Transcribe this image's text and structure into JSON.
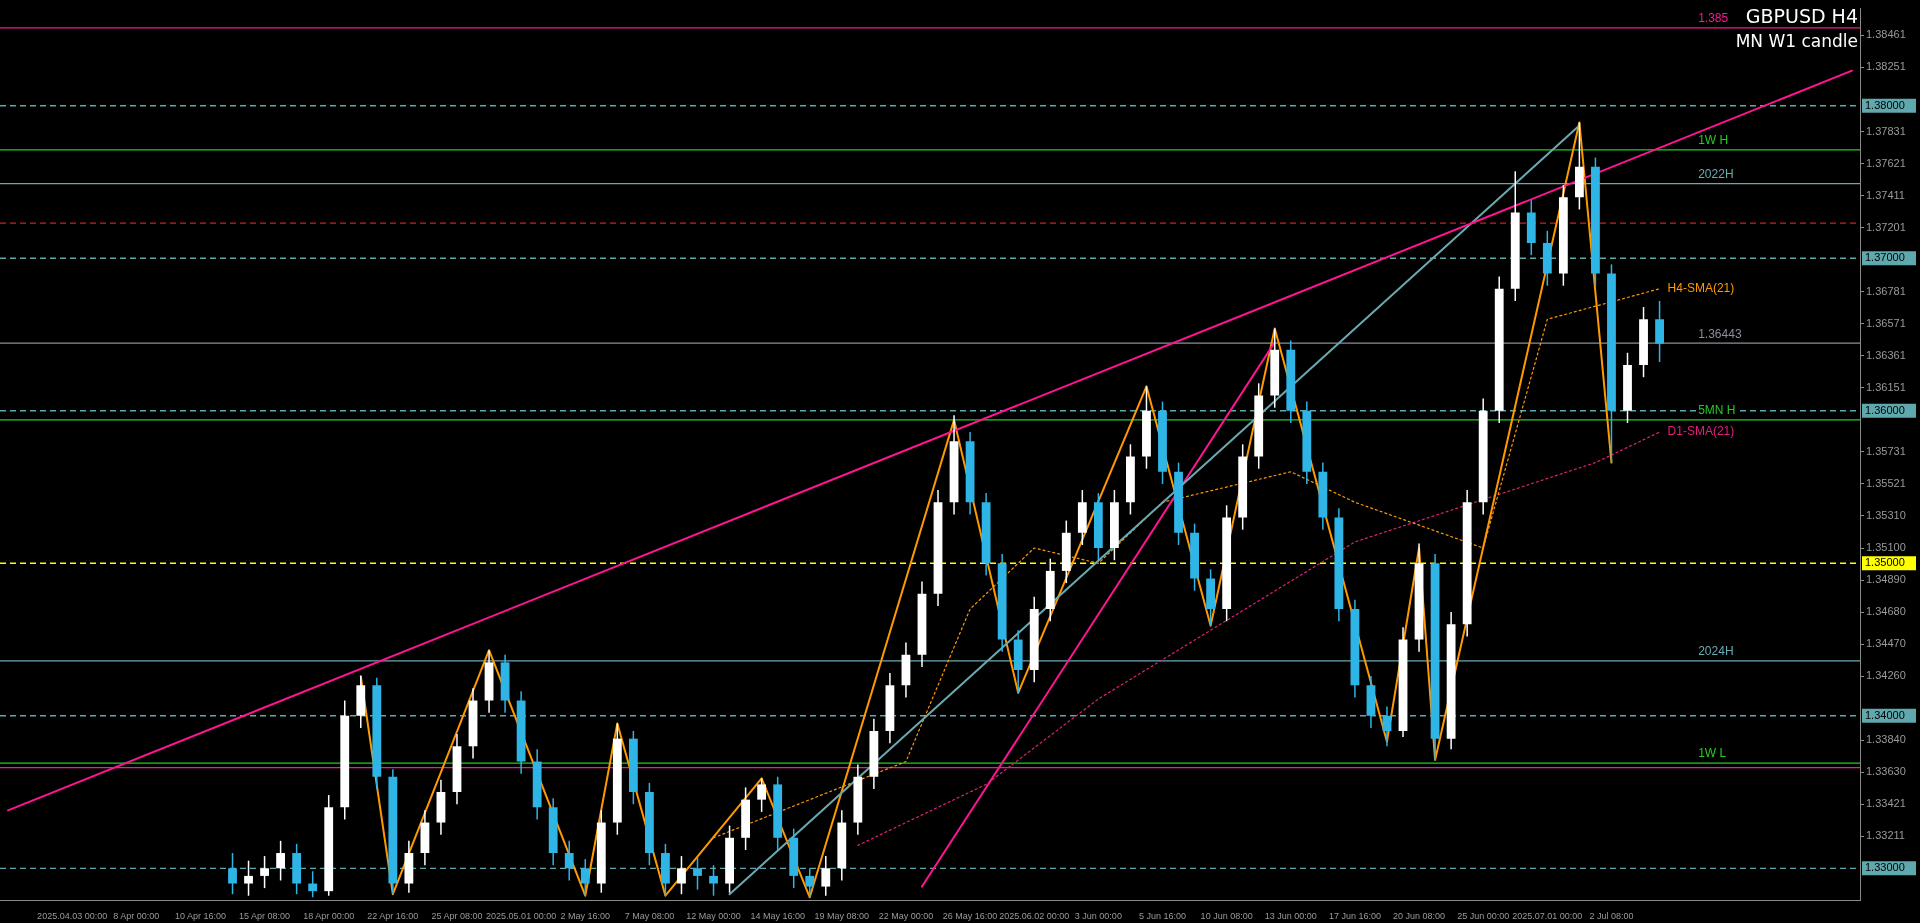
{
  "chart_data": {
    "type": "candlestick",
    "title": "GBPUSD H4",
    "subtitle": "MN W1 candle",
    "categories": [
      null,
      null,
      null,
      null,
      "2025.04.03 00:00",
      null,
      null,
      null,
      "8 Apr 00:00",
      null,
      null,
      null,
      "10 Apr 16:00",
      null,
      null,
      null,
      "15 Apr 08:00",
      null,
      null,
      null,
      "18 Apr 00:00",
      null,
      null,
      null,
      "22 Apr 16:00",
      null,
      null,
      null,
      "25 Apr 08:00",
      null,
      null,
      null,
      "2025.05.01 00:00",
      null,
      null,
      null,
      "2 May 16:00",
      null,
      null,
      null,
      "7 May 08:00",
      null,
      null,
      null,
      "12 May 00:00",
      null,
      null,
      null,
      "14 May 16:00",
      null,
      null,
      null,
      "19 May 08:00",
      null,
      null,
      null,
      "22 May 00:00",
      null,
      null,
      null,
      "26 May 16:00",
      null,
      null,
      null,
      "2025.06.02 00:00",
      null,
      null,
      null,
      "3 Jun 00:00",
      null,
      null,
      null,
      "5 Jun 16:00",
      null,
      null,
      null,
      "10 Jun 08:00",
      null,
      null,
      null,
      "13 Jun 00:00",
      null,
      null,
      null,
      "17 Jun 16:00",
      null,
      null,
      null,
      "20 Jun 08:00",
      null,
      null,
      null,
      "25 Jun 00:00",
      null,
      null,
      null,
      "2025.07.01 00:00",
      null,
      null,
      null,
      "2 Jul 08:00",
      null,
      null,
      null,
      null,
      null,
      null,
      null,
      null,
      null,
      null,
      null,
      null,
      null,
      null,
      null
    ],
    "ohlc": [
      null,
      null,
      null,
      null,
      null,
      null,
      null,
      null,
      null,
      null,
      null,
      null,
      null,
      null,
      [
        1.33,
        1.331,
        1.3283,
        1.329
      ],
      [
        1.329,
        1.3305,
        1.3282,
        1.3295
      ],
      [
        1.3295,
        1.3308,
        1.3287,
        1.33
      ],
      [
        1.33,
        1.3318,
        1.3292,
        1.331
      ],
      [
        1.331,
        1.3316,
        1.3283,
        1.329
      ],
      [
        1.329,
        1.3298,
        1.3281,
        1.3285
      ],
      [
        1.3285,
        1.3348,
        1.3282,
        1.334
      ],
      [
        1.334,
        1.341,
        1.3332,
        1.34
      ],
      [
        1.34,
        1.3426,
        1.3392,
        1.342
      ],
      [
        1.342,
        1.3425,
        1.3352,
        1.336
      ],
      [
        1.336,
        1.3365,
        1.3283,
        1.329
      ],
      [
        1.329,
        1.3318,
        1.3284,
        1.331
      ],
      [
        1.331,
        1.3338,
        1.3302,
        1.333
      ],
      [
        1.333,
        1.3358,
        1.3322,
        1.335
      ],
      [
        1.335,
        1.3388,
        1.3342,
        1.338
      ],
      [
        1.338,
        1.3418,
        1.3372,
        1.341
      ],
      [
        1.341,
        1.3443,
        1.3402,
        1.3435
      ],
      [
        1.3435,
        1.344,
        1.3402,
        1.341
      ],
      [
        1.341,
        1.3416,
        1.3362,
        1.337
      ],
      [
        1.337,
        1.3378,
        1.3332,
        1.334
      ],
      [
        1.334,
        1.3346,
        1.3302,
        1.331
      ],
      [
        1.331,
        1.3318,
        1.3292,
        1.33
      ],
      [
        1.33,
        1.3306,
        1.3282,
        1.329
      ],
      [
        1.329,
        1.3338,
        1.3284,
        1.333
      ],
      [
        1.333,
        1.3395,
        1.3322,
        1.3385
      ],
      [
        1.3385,
        1.339,
        1.3342,
        1.335
      ],
      [
        1.335,
        1.3356,
        1.3302,
        1.331
      ],
      [
        1.331,
        1.3316,
        1.3282,
        1.329
      ],
      [
        1.329,
        1.3308,
        1.3283,
        1.33
      ],
      [
        1.33,
        1.3307,
        1.3286,
        1.3295
      ],
      [
        1.3295,
        1.3302,
        1.3282,
        1.329
      ],
      [
        1.329,
        1.3328,
        1.3284,
        1.332
      ],
      [
        1.332,
        1.3353,
        1.3312,
        1.3345
      ],
      [
        1.3345,
        1.3359,
        1.3337,
        1.3355
      ],
      [
        1.3355,
        1.336,
        1.3312,
        1.332
      ],
      [
        1.332,
        1.3326,
        1.3287,
        1.3295
      ],
      [
        1.3295,
        1.33,
        1.3281,
        1.3288
      ],
      [
        1.3288,
        1.3308,
        1.3282,
        1.33
      ],
      [
        1.33,
        1.3338,
        1.3292,
        1.333
      ],
      [
        1.333,
        1.3368,
        1.3322,
        1.336
      ],
      [
        1.336,
        1.3398,
        1.3352,
        1.339
      ],
      [
        1.339,
        1.3428,
        1.3382,
        1.342
      ],
      [
        1.342,
        1.3448,
        1.3412,
        1.344
      ],
      [
        1.344,
        1.3488,
        1.3432,
        1.348
      ],
      [
        1.348,
        1.3548,
        1.3472,
        1.354
      ],
      [
        1.354,
        1.3597,
        1.3532,
        1.358
      ],
      [
        1.358,
        1.3586,
        1.3532,
        1.354
      ],
      [
        1.354,
        1.3546,
        1.3492,
        1.35
      ],
      [
        1.35,
        1.3506,
        1.3442,
        1.345
      ],
      [
        1.345,
        1.3456,
        1.3415,
        1.343
      ],
      [
        1.343,
        1.3478,
        1.3422,
        1.347
      ],
      [
        1.347,
        1.3503,
        1.3462,
        1.3495
      ],
      [
        1.3495,
        1.3528,
        1.3487,
        1.352
      ],
      [
        1.352,
        1.3548,
        1.3512,
        1.354
      ],
      [
        1.354,
        1.3546,
        1.3502,
        1.351
      ],
      [
        1.351,
        1.3548,
        1.3502,
        1.354
      ],
      [
        1.354,
        1.3578,
        1.3532,
        1.357
      ],
      [
        1.357,
        1.3616,
        1.3562,
        1.36
      ],
      [
        1.36,
        1.3606,
        1.3552,
        1.356
      ],
      [
        1.356,
        1.3566,
        1.3512,
        1.352
      ],
      [
        1.352,
        1.3526,
        1.3482,
        1.349
      ],
      [
        1.349,
        1.3496,
        1.3459,
        1.347
      ],
      [
        1.347,
        1.3538,
        1.3462,
        1.353
      ],
      [
        1.353,
        1.3578,
        1.3522,
        1.357
      ],
      [
        1.357,
        1.3618,
        1.3562,
        1.361
      ],
      [
        1.361,
        1.3654,
        1.3602,
        1.364
      ],
      [
        1.364,
        1.3646,
        1.3592,
        1.36
      ],
      [
        1.36,
        1.3606,
        1.3552,
        1.356
      ],
      [
        1.356,
        1.3566,
        1.3522,
        1.353
      ],
      [
        1.353,
        1.3536,
        1.3462,
        1.347
      ],
      [
        1.347,
        1.3476,
        1.3412,
        1.342
      ],
      [
        1.342,
        1.3426,
        1.3392,
        1.34
      ],
      [
        1.34,
        1.3406,
        1.338,
        1.339
      ],
      [
        1.339,
        1.3458,
        1.3386,
        1.345
      ],
      [
        1.345,
        1.3513,
        1.3442,
        1.35
      ],
      [
        1.35,
        1.3506,
        1.3371,
        1.3385
      ],
      [
        1.3385,
        1.3468,
        1.3378,
        1.346
      ],
      [
        1.346,
        1.3548,
        1.3452,
        1.354
      ],
      [
        1.354,
        1.3608,
        1.3532,
        1.36
      ],
      [
        1.36,
        1.3688,
        1.3592,
        1.368
      ],
      [
        1.368,
        1.3757,
        1.3672,
        1.373
      ],
      [
        1.373,
        1.3738,
        1.3702,
        1.371
      ],
      [
        1.371,
        1.3718,
        1.3682,
        1.369
      ],
      [
        1.369,
        1.3748,
        1.3682,
        1.374
      ],
      [
        1.374,
        1.3789,
        1.3732,
        1.376
      ],
      [
        1.376,
        1.3766,
        1.3682,
        1.369
      ],
      [
        1.369,
        1.3696,
        1.3566,
        1.36
      ],
      [
        1.36,
        1.3638,
        1.3592,
        1.363
      ],
      [
        1.363,
        1.3668,
        1.3622,
        1.366
      ],
      [
        1.366,
        1.3672,
        1.3632,
        1.3644
      ],
      null,
      null,
      null,
      null,
      null,
      null,
      null,
      null,
      null,
      null,
      null,
      null
    ],
    "colors": [
      null,
      null,
      null,
      null,
      null,
      null,
      null,
      null,
      null,
      null,
      null,
      null,
      null,
      null,
      "#2fb4e6",
      "#ffffff",
      "#ffffff",
      "#ffffff",
      "#2fb4e6",
      "#2fb4e6",
      "#ffffff",
      "#ffffff",
      "#ffffff",
      "#2fb4e6",
      "#2fb4e6",
      "#ffffff",
      "#ffffff",
      "#ffffff",
      "#ffffff",
      "#ffffff",
      "#ffffff",
      "#2fb4e6",
      "#2fb4e6",
      "#2fb4e6",
      "#2fb4e6",
      "#2fb4e6",
      "#2fb4e6",
      "#ffffff",
      "#ffffff",
      "#2fb4e6",
      "#2fb4e6",
      "#2fb4e6",
      "#ffffff",
      "#2fb4e6",
      "#2fb4e6",
      "#ffffff",
      "#ffffff",
      "#ffffff",
      "#2fb4e6",
      "#2fb4e6",
      "#2fb4e6",
      "#ffffff",
      "#ffffff",
      "#ffffff",
      "#ffffff",
      "#ffffff",
      "#ffffff",
      "#ffffff",
      "#ffffff",
      "#ffffff",
      "#2fb4e6",
      "#2fb4e6",
      "#2fb4e6",
      "#2fb4e6",
      "#ffffff",
      "#ffffff",
      "#ffffff",
      "#ffffff",
      "#2fb4e6",
      "#ffffff",
      "#ffffff",
      "#ffffff",
      "#2fb4e6",
      "#2fb4e6",
      "#2fb4e6",
      "#2fb4e6",
      "#ffffff",
      "#ffffff",
      "#ffffff",
      "#ffffff",
      "#2fb4e6",
      "#2fb4e6",
      "#2fb4e6",
      "#2fb4e6",
      "#2fb4e6",
      "#2fb4e6",
      "#2fb4e6",
      "#ffffff",
      "#ffffff",
      "#2fb4e6",
      "#ffffff",
      "#ffffff",
      "#ffffff",
      "#ffffff",
      "#ffffff",
      "#2fb4e6",
      "#2fb4e6",
      "#ffffff",
      "#ffffff",
      "#2fb4e6",
      "#2fb4e6",
      "#ffffff",
      "#ffffff",
      "#2fb4e6",
      null,
      null,
      null,
      null,
      null,
      null,
      null,
      null,
      null,
      null,
      null,
      null
    ],
    "series": [
      {
        "type": "line",
        "color": "#ff1493",
        "line_style": "solid",
        "values": [
          1.3338,
          null,
          null,
          null,
          null,
          null,
          null,
          null,
          null,
          null,
          null,
          null,
          null,
          null,
          null,
          null,
          null,
          null,
          null,
          null,
          null,
          null,
          null,
          null,
          null,
          null,
          null,
          null,
          null,
          null,
          null,
          null,
          null,
          null,
          null,
          null,
          null,
          null,
          null,
          null,
          null,
          null,
          null,
          null,
          null,
          null,
          null,
          null,
          null,
          null,
          null,
          null,
          null,
          null,
          null,
          null,
          null,
          null,
          null,
          null,
          null,
          null,
          null,
          null,
          null,
          null,
          null,
          null,
          null,
          null,
          null,
          null,
          null,
          null,
          null,
          null,
          null,
          null,
          null,
          null,
          null,
          null,
          null,
          null,
          null,
          null,
          null,
          null,
          null,
          null,
          null,
          null,
          null,
          null,
          null,
          null,
          null,
          null,
          null,
          null,
          null,
          null,
          null,
          null,
          null,
          null,
          null,
          null,
          null,
          null,
          null,
          null,
          null,
          null,
          null,
          1.3823
        ]
      },
      {
        "type": "line",
        "color": "#6aa9b0",
        "line_style": "solid",
        "values": [
          null,
          null,
          null,
          null,
          null,
          null,
          null,
          null,
          null,
          null,
          null,
          null,
          null,
          null,
          null,
          null,
          null,
          null,
          null,
          null,
          null,
          null,
          null,
          null,
          null,
          null,
          null,
          null,
          null,
          null,
          null,
          null,
          null,
          null,
          null,
          null,
          null,
          null,
          null,
          null,
          null,
          null,
          null,
          null,
          null,
          1.3283,
          null,
          null,
          null,
          null,
          null,
          null,
          null,
          null,
          null,
          null,
          null,
          null,
          null,
          null,
          null,
          null,
          null,
          null,
          null,
          null,
          null,
          null,
          null,
          null,
          null,
          null,
          null,
          null,
          null,
          null,
          null,
          null,
          null,
          null,
          null,
          null,
          null,
          null,
          null,
          null,
          null,
          null,
          null,
          null,
          null,
          null,
          null,
          null,
          null,
          null,
          null,
          null,
          1.3787,
          null,
          null,
          null,
          null,
          null,
          null,
          null,
          null,
          null,
          null,
          null,
          null,
          null,
          null,
          null,
          null,
          null
        ]
      },
      {
        "type": "line",
        "color": "#ff1493",
        "line_style": "solid",
        "values": [
          null,
          null,
          null,
          null,
          null,
          null,
          null,
          null,
          null,
          null,
          null,
          null,
          null,
          null,
          null,
          null,
          null,
          null,
          null,
          null,
          null,
          null,
          null,
          null,
          null,
          null,
          null,
          null,
          null,
          null,
          null,
          null,
          null,
          null,
          null,
          null,
          null,
          null,
          null,
          null,
          null,
          null,
          null,
          null,
          null,
          null,
          null,
          null,
          null,
          null,
          null,
          null,
          null,
          null,
          null,
          null,
          null,
          1.3288,
          null,
          null,
          null,
          null,
          null,
          null,
          null,
          null,
          null,
          null,
          null,
          null,
          null,
          null,
          null,
          null,
          null,
          null,
          null,
          null,
          null,
          1.3645,
          null,
          null,
          null,
          null,
          null,
          null,
          null,
          null,
          null,
          null,
          null,
          null,
          null,
          null,
          null,
          null,
          null,
          null,
          null,
          null,
          null,
          null,
          null,
          null,
          null,
          null,
          null,
          null,
          null,
          null,
          null,
          null,
          null,
          null,
          null,
          null
        ]
      },
      {
        "type": "line",
        "color": "#ff9900",
        "line_style": "solid",
        "values": [
          null,
          null,
          null,
          null,
          null,
          null,
          null,
          null,
          null,
          null,
          null,
          null,
          null,
          null,
          null,
          null,
          null,
          null,
          null,
          null,
          null,
          null,
          1.3426,
          null,
          1.3283,
          null,
          null,
          null,
          null,
          null,
          1.3443,
          null,
          null,
          null,
          null,
          null,
          1.3282,
          null,
          1.3395,
          null,
          null,
          1.3282,
          null,
          null,
          null,
          null,
          null,
          1.3359,
          null,
          null,
          1.3281,
          null,
          null,
          null,
          null,
          null,
          null,
          null,
          null,
          1.3594,
          null,
          null,
          null,
          1.3415,
          null,
          null,
          null,
          null,
          null,
          null,
          null,
          1.3616,
          null,
          null,
          null,
          1.3459,
          null,
          null,
          null,
          1.3654,
          null,
          null,
          null,
          null,
          null,
          null,
          1.3383,
          null,
          1.351,
          1.3371,
          null,
          null,
          null,
          null,
          null,
          null,
          null,
          null,
          1.3789,
          null,
          1.3566,
          null,
          null,
          null,
          null,
          null,
          null,
          null,
          null,
          null,
          null,
          null,
          null,
          null,
          null,
          null
        ]
      },
      {
        "type": "line",
        "name": "H4-SMA(21)",
        "color": "#ff9900",
        "line_style": "dotted",
        "values": [
          null,
          null,
          null,
          null,
          null,
          null,
          null,
          null,
          null,
          null,
          null,
          null,
          null,
          null,
          null,
          null,
          null,
          null,
          null,
          null,
          null,
          null,
          null,
          null,
          null,
          null,
          null,
          null,
          null,
          null,
          null,
          null,
          null,
          null,
          null,
          null,
          null,
          null,
          null,
          null,
          null,
          null,
          null,
          null,
          1.332,
          null,
          null,
          null,
          null,
          null,
          null,
          null,
          null,
          null,
          null,
          null,
          1.337,
          null,
          null,
          null,
          1.347,
          null,
          null,
          null,
          1.351,
          null,
          null,
          null,
          1.35,
          null,
          null,
          null,
          1.354,
          null,
          null,
          null,
          null,
          null,
          null,
          null,
          1.356,
          null,
          null,
          null,
          1.354,
          null,
          null,
          null,
          null,
          null,
          null,
          null,
          1.351,
          null,
          null,
          null,
          1.366,
          null,
          null,
          null,
          null,
          null,
          null,
          1.368,
          null,
          null,
          null,
          null,
          null,
          null,
          null,
          null,
          null,
          null,
          null,
          null
        ]
      },
      {
        "type": "line",
        "name": "D1-SMA(21)",
        "color": "#e0207a",
        "line_style": "dotted",
        "values": [
          null,
          null,
          null,
          null,
          null,
          null,
          null,
          null,
          null,
          null,
          null,
          null,
          null,
          null,
          null,
          null,
          null,
          null,
          null,
          null,
          null,
          null,
          null,
          null,
          null,
          null,
          null,
          null,
          null,
          null,
          null,
          null,
          null,
          null,
          null,
          null,
          null,
          null,
          null,
          null,
          null,
          null,
          null,
          null,
          null,
          null,
          null,
          null,
          null,
          null,
          null,
          null,
          null,
          1.3315,
          null,
          null,
          null,
          null,
          null,
          null,
          null,
          1.3355,
          null,
          null,
          null,
          null,
          null,
          null,
          1.3411,
          null,
          null,
          null,
          null,
          null,
          null,
          null,
          null,
          null,
          null,
          null,
          null,
          null,
          null,
          null,
          1.3514,
          null,
          null,
          null,
          null,
          null,
          null,
          null,
          null,
          null,
          null,
          null,
          null,
          null,
          null,
          1.3566,
          null,
          null,
          null,
          1.3586,
          null,
          null,
          null,
          null,
          null,
          null,
          null,
          null,
          null,
          null,
          null,
          null
        ]
      }
    ],
    "ylim": [
      1.32792,
      1.38637
    ],
    "yticks": [
      1.38461,
      1.38251,
      1.37831,
      1.37621,
      1.37411,
      1.37201,
      1.36781,
      1.36571,
      1.36361,
      1.36151,
      1.35731,
      1.35521,
      {
        "value": 1.3531,
        "label": "1.35310"
      },
      {
        "value": 1.351,
        "label": "1.35100"
      },
      {
        "value": 1.3489,
        "label": "1.34890"
      },
      {
        "value": 1.3468,
        "label": "1.34680"
      },
      {
        "value": 1.3447,
        "label": "1.34470"
      },
      {
        "value": 1.3426,
        "label": "1.34260"
      },
      {
        "value": 1.3384,
        "label": "1.33840"
      },
      {
        "value": 1.3363,
        "label": "1.33630"
      },
      1.33421,
      1.33211
    ],
    "ref_lines": [
      {
        "axis": "y",
        "value": 1.38,
        "label": "1.38000",
        "color": "#5fa8ad",
        "line_style": "dashed"
      },
      {
        "axis": "y",
        "value": 1.37,
        "label": "1.37000",
        "color": "#5fa8ad",
        "line_style": "dashed"
      },
      {
        "axis": "y",
        "value": 1.36,
        "label": "1.36000",
        "color": "#5fa8ad",
        "line_style": "dashed"
      },
      {
        "axis": "y",
        "value": 1.35,
        "label": "1.35000",
        "color": "#ffff00",
        "line_style": "dashed"
      },
      {
        "axis": "y",
        "value": 1.34,
        "label": "1.34000",
        "color": "#5fa8ad",
        "line_style": "dashed"
      },
      {
        "axis": "y",
        "value": 1.33,
        "label": "1.33000",
        "color": "#5fa8ad",
        "line_style": "dashed"
      },
      {
        "axis": "y",
        "value": 1.3723,
        "color": "#cc2222",
        "line_style": "dashed"
      },
      {
        "axis": "y",
        "value": 1.3851,
        "label": "1.385",
        "color": "#ff1493",
        "line_style": "solid"
      },
      {
        "axis": "y",
        "value": 1.3771,
        "label": "1W H",
        "color": "#22cc22",
        "line_style": "solid"
      },
      {
        "axis": "y",
        "value": 1.3749,
        "label": "2022H",
        "color": "#6aa9b0",
        "line_style": "solid"
      },
      {
        "axis": "y",
        "value": 1.36443,
        "label": "1.36443",
        "color": "#8a8f99",
        "line_style": "solid"
      },
      {
        "axis": "y",
        "value": 1.3594,
        "label": "5MN H",
        "color": "#22cc22",
        "line_style": "solid"
      },
      {
        "axis": "y",
        "value": 1.3436,
        "label": "2024H",
        "color": "#6aa9b0",
        "line_style": "solid"
      },
      {
        "axis": "y",
        "value": 1.3369,
        "label": "1W L",
        "color": "#22cc22",
        "line_style": "solid"
      },
      {
        "axis": "y",
        "value": 1.3366,
        "color": "#ff1493",
        "line_style": "solid"
      }
    ]
  }
}
